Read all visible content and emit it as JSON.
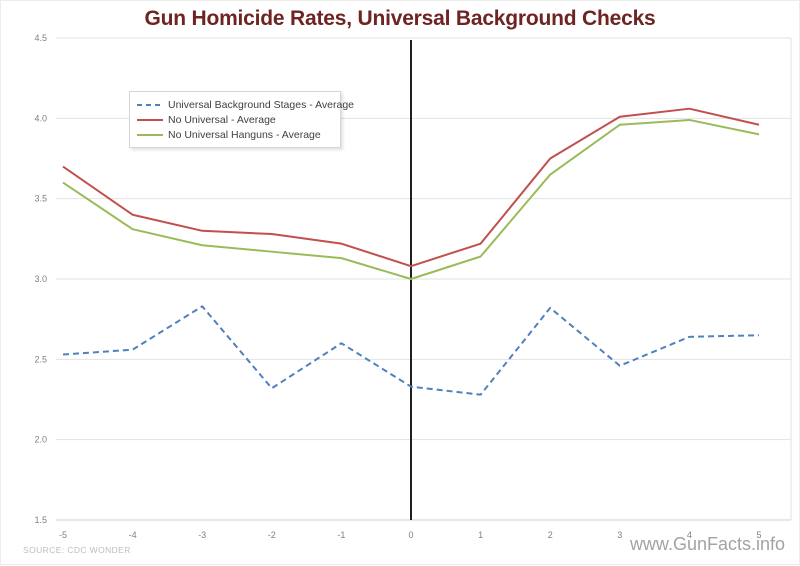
{
  "title": "Gun Homicide Rates, Universal Background Checks",
  "source": "SOURCE: CDC WONDER",
  "watermark": "www.GunFacts.info",
  "chart_data": {
    "type": "line",
    "title": "Gun Homicide Rates, Universal Background Checks",
    "xlabel": "",
    "ylabel": "",
    "categories": [
      -5,
      -4,
      -3,
      -2,
      -1,
      0,
      1,
      2,
      3,
      4,
      5
    ],
    "series": [
      {
        "name": "Universal Background Stages - Average",
        "color": "#4F81BD",
        "dashed": true,
        "values": [
          2.53,
          2.56,
          2.83,
          2.32,
          2.6,
          2.33,
          2.28,
          2.82,
          2.46,
          2.64,
          2.65
        ]
      },
      {
        "name": "No Universal - Average",
        "color": "#C0504D",
        "dashed": false,
        "values": [
          3.7,
          3.4,
          3.3,
          3.28,
          3.22,
          3.08,
          3.22,
          3.75,
          4.01,
          4.06,
          3.96
        ]
      },
      {
        "name": "No Universal Hanguns - Average",
        "color": "#9BBB59",
        "dashed": false,
        "values": [
          3.6,
          3.31,
          3.21,
          3.17,
          3.13,
          3.0,
          3.14,
          3.65,
          3.96,
          3.99,
          3.9
        ]
      }
    ],
    "ylim": [
      1.5,
      4.5
    ],
    "yticks": [
      4.5,
      4.0,
      3.5,
      3.0,
      2.5,
      2.0,
      1.5
    ],
    "grid": true,
    "legend_position": "upper-left-inside",
    "annotation": {
      "type": "vertical-line",
      "x": 0
    },
    "colors": {
      "title": "#6E2422",
      "grid": "#e2e2e2",
      "axis_line": "#d2d2d2",
      "tick_labels": "#7f7f7f",
      "annotation_line": "#1f1f1f"
    }
  }
}
